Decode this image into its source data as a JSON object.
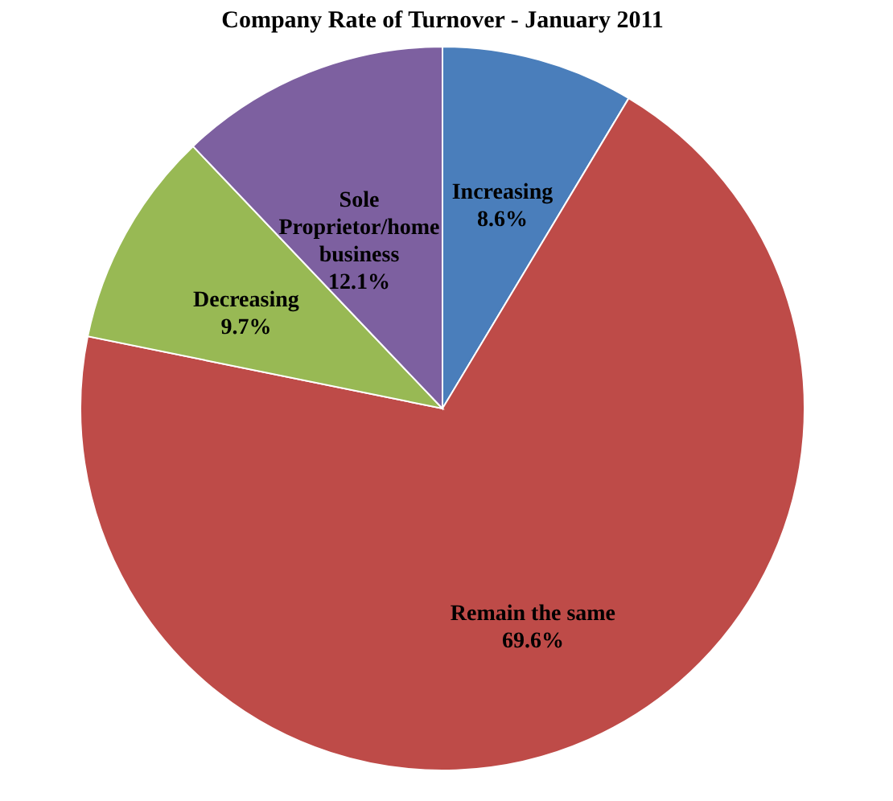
{
  "chart_data": {
    "type": "pie",
    "title": "Company Rate of Turnover - January 2011",
    "categories": [
      "Increasing",
      "Remain the same",
      "Decreasing",
      "Sole Proprietor/home business"
    ],
    "values": [
      8.6,
      69.6,
      9.7,
      12.1
    ],
    "colors": [
      "#4a7ebb",
      "#be4b48",
      "#98b954",
      "#7d60a0"
    ],
    "value_labels": [
      "8.6%",
      "69.6%",
      "9.7%",
      "12.1%"
    ],
    "legend": false
  }
}
